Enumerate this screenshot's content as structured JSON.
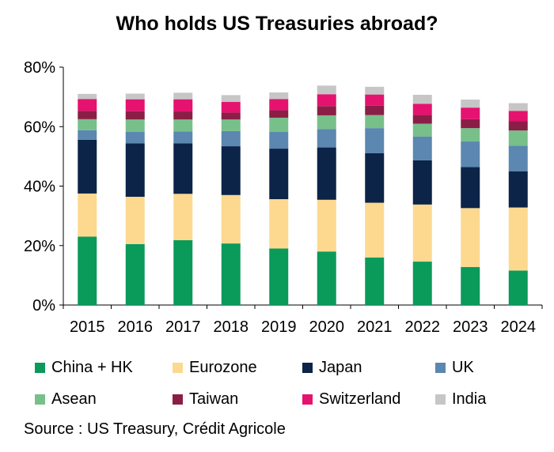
{
  "chart_data": {
    "type": "bar",
    "stacked": true,
    "title": "Who holds US Treasuries abroad?",
    "categories": [
      "2015",
      "2016",
      "2017",
      "2018",
      "2019",
      "2020",
      "2021",
      "2022",
      "2023",
      "2024"
    ],
    "ylim": [
      0,
      80
    ],
    "yticks": [
      "0%",
      "20%",
      "40%",
      "60%",
      "80%"
    ],
    "ytick_values": [
      0,
      20,
      40,
      60,
      80
    ],
    "grid": false,
    "legend_position": "bottom",
    "series": [
      {
        "name": "China + HK",
        "color": "#0a9a5a",
        "values": [
          23.0,
          20.5,
          21.8,
          20.7,
          19.0,
          18.0,
          16.0,
          14.6,
          12.8,
          11.6
        ]
      },
      {
        "name": "Eurozone",
        "color": "#fcd98f",
        "values": [
          14.5,
          15.9,
          15.6,
          16.3,
          16.6,
          17.4,
          18.4,
          19.2,
          19.8,
          21.2
        ]
      },
      {
        "name": "Japan",
        "color": "#0b2447",
        "values": [
          18.1,
          18.0,
          17.0,
          16.4,
          17.0,
          17.6,
          16.7,
          14.9,
          13.8,
          12.2
        ]
      },
      {
        "name": "UK",
        "color": "#5b87b0",
        "values": [
          3.2,
          3.8,
          4.0,
          5.1,
          5.6,
          6.2,
          8.4,
          8.0,
          8.6,
          8.6
        ]
      },
      {
        "name": "Asean",
        "color": "#77c08a",
        "values": [
          3.7,
          4.2,
          4.0,
          3.9,
          4.8,
          4.6,
          4.4,
          4.3,
          4.5,
          5.1
        ]
      },
      {
        "name": "Taiwan",
        "color": "#8b1e46",
        "values": [
          2.8,
          2.8,
          2.7,
          2.3,
          2.5,
          3.1,
          3.1,
          2.9,
          3.0,
          3.1
        ]
      },
      {
        "name": "Switzerland",
        "color": "#e5126f",
        "values": [
          4.0,
          4.0,
          4.1,
          3.6,
          3.8,
          4.0,
          3.8,
          3.8,
          3.9,
          3.5
        ]
      },
      {
        "name": "India",
        "color": "#c6c6c6",
        "values": [
          1.7,
          1.9,
          2.2,
          2.3,
          2.2,
          2.9,
          2.6,
          3.0,
          2.7,
          2.6
        ]
      }
    ]
  },
  "source": "Source : US Treasury, Crédit Agricole"
}
